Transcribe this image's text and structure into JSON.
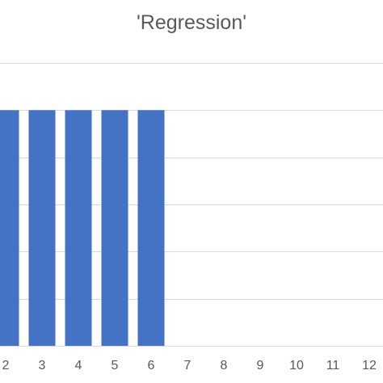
{
  "chart_data": {
    "type": "bar",
    "title": "'Regression'",
    "xlabel": "",
    "ylabel": "",
    "categories": [
      "2",
      "3",
      "4",
      "5",
      "6",
      "7",
      "8",
      "9",
      "10",
      "11",
      "12"
    ],
    "values": [
      5,
      5,
      5,
      5,
      5,
      0,
      0,
      0,
      0,
      0,
      0
    ],
    "ylim": [
      0,
      6
    ],
    "grid": true,
    "colors": {
      "bar": "#4472c4",
      "grid": "#d9d9d9",
      "text": "#595959"
    }
  }
}
